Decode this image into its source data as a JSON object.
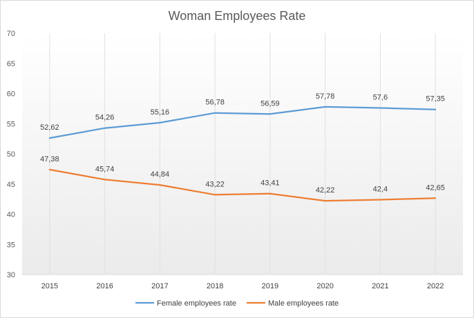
{
  "chart_data": {
    "type": "line",
    "title": "Woman Employees Rate",
    "xlabel": "",
    "ylabel": "",
    "categories": [
      "2015",
      "2016",
      "2017",
      "2018",
      "2019",
      "2020",
      "2021",
      "2022"
    ],
    "ylim": [
      30,
      70
    ],
    "yticks": [
      "30",
      "35",
      "40",
      "45",
      "50",
      "55",
      "60",
      "65",
      "70"
    ],
    "grid": "vertical",
    "legend": "bottom",
    "series": [
      {
        "name": "Female employees rate",
        "color": "#5b9bd5",
        "values": [
          52.62,
          54.26,
          55.16,
          56.78,
          56.59,
          57.78,
          57.6,
          57.35
        ],
        "labels": [
          "52,62",
          "54,26",
          "55,16",
          "56,78",
          "56,59",
          "57,78",
          "57,6",
          "57,35"
        ]
      },
      {
        "name": "Male employees rate",
        "color": "#ed7d31",
        "values": [
          47.38,
          45.74,
          44.84,
          43.22,
          43.41,
          42.22,
          42.4,
          42.65
        ],
        "labels": [
          "47,38",
          "45,74",
          "44,84",
          "43,22",
          "43,41",
          "42,22",
          "42,4",
          "42,65"
        ]
      }
    ]
  }
}
